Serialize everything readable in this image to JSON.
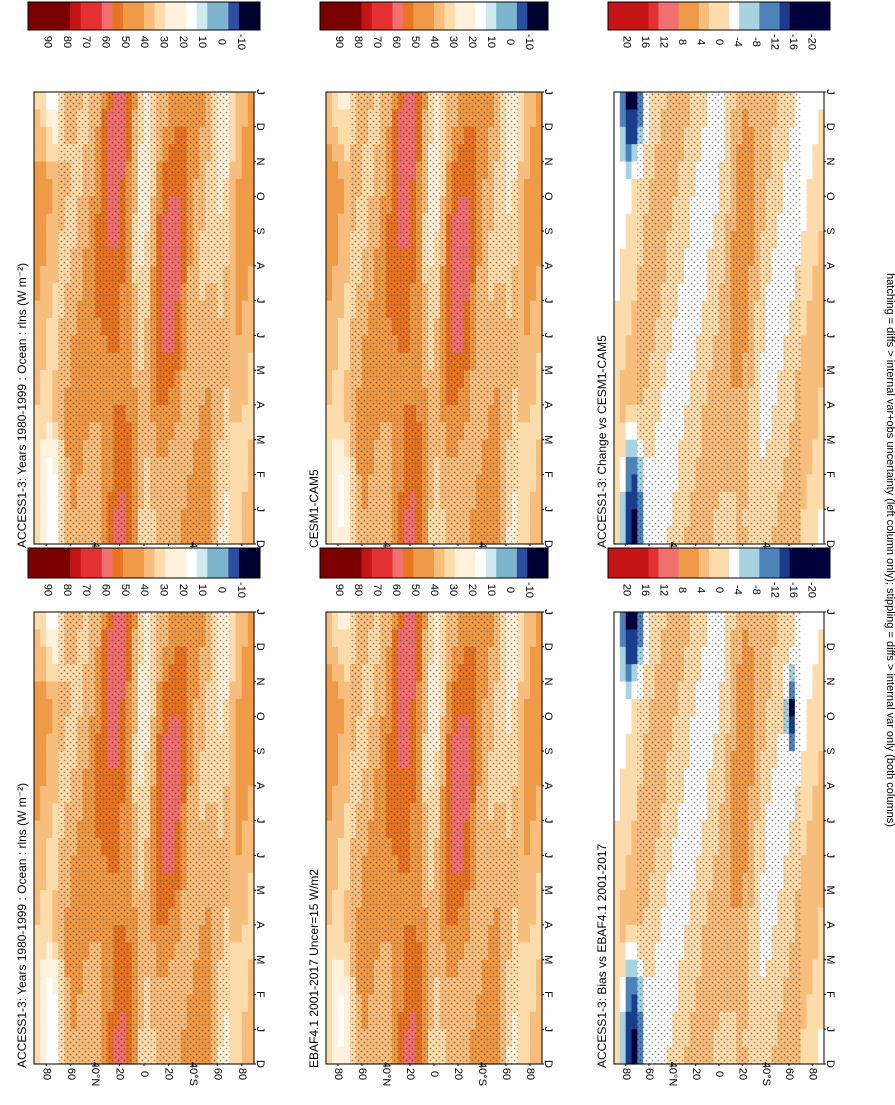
{
  "figure": {
    "footnote": "hatching = diffs > internal var+obs uncertainty (left column only); stippling = diffs > internal var only (both columns)"
  },
  "axes_text": {
    "months": [
      "D",
      "J",
      "F",
      "M",
      "A",
      "M",
      "J",
      "J",
      "A",
      "S",
      "O",
      "N",
      "D",
      "J"
    ],
    "lat_ticks": [
      "80",
      "60",
      "40°N",
      "20",
      "0",
      "20",
      "40°S",
      "60",
      "80"
    ]
  },
  "colorbars": {
    "abs": [
      "90",
      "80",
      "70",
      "60",
      "50",
      "40",
      "30",
      "20",
      "10",
      "0",
      "-10"
    ],
    "diff": [
      "20",
      "16",
      "12",
      "8",
      "4",
      "0",
      "-4",
      "-8",
      "-12",
      "-16",
      "-20"
    ],
    "abs_colors": [
      "#000030",
      "#0a1e60",
      "#2b4ea0",
      "#4e83b9",
      "#7fb4cf",
      "#a6d3df",
      "#cdeaf0",
      "#e8f6f7",
      "#ffffff",
      "#fff1dc",
      "#fddcac",
      "#f6bd7d",
      "#ef9a47",
      "#e77522",
      "#d96012",
      "#f07070",
      "#f55050",
      "#e33030",
      "#c51416",
      "#a50a14",
      "#7b0000",
      "#0000c8",
      "#0000ee",
      "#0000ff"
    ],
    "diff_colors": [
      "#000030",
      "#0a1e60",
      "#2b4ea0",
      "#4e83b9",
      "#7fb4cf",
      "#a6d3df",
      "#cdeaf0",
      "#e8f6f7",
      "#ffffff",
      "#fff1dc",
      "#fddcac",
      "#f6bd7d",
      "#ef9a47",
      "#e77522",
      "#d96012",
      "#f07070",
      "#f55050",
      "#e33030",
      "#c51416",
      "#a50a14",
      "#7b0000",
      "#0000c8",
      "#0000ee",
      "#0000ff"
    ]
  },
  "chart_data": [
    {
      "type": "heatmap",
      "title": "ACCESS1-3: Years 1980-1999 : Ocean : rlns (W m⁻²)",
      "scale": "abs",
      "xlabel": "",
      "ylabel": "",
      "x": [
        "D",
        "J",
        "F",
        "M",
        "A",
        "M",
        "J",
        "J",
        "A",
        "S",
        "O",
        "N",
        "D",
        "J"
      ],
      "y_ticks": [
        "80",
        "60",
        "40°N",
        "20",
        "0",
        "20",
        "40°S",
        "60",
        "80"
      ],
      "zlim": [
        -10,
        90
      ],
      "hatching": true
    },
    {
      "type": "heatmap",
      "title": "ACCESS1-3: Years 1980-1999 : Ocean : rlns (W m⁻²)",
      "scale": "abs",
      "xlabel": "",
      "ylabel": "",
      "x": [
        "D",
        "J",
        "F",
        "M",
        "A",
        "M",
        "J",
        "J",
        "A",
        "S",
        "O",
        "N",
        "D",
        "J"
      ],
      "y_ticks": [
        "80",
        "60",
        "40°N",
        "20",
        "0",
        "20",
        "40°S",
        "60",
        "80"
      ],
      "zlim": [
        -10,
        90
      ],
      "hatching": false
    },
    {
      "type": "heatmap",
      "title": "EBAF4.1 2001-2017 Uncer=15 W/m2",
      "scale": "abs",
      "xlabel": "",
      "ylabel": "",
      "x": [
        "D",
        "J",
        "F",
        "M",
        "A",
        "M",
        "J",
        "J",
        "A",
        "S",
        "O",
        "N",
        "D",
        "J"
      ],
      "y_ticks": [
        "80",
        "60",
        "40°N",
        "20",
        "0",
        "20",
        "40°S",
        "60",
        "80"
      ],
      "zlim": [
        -10,
        90
      ],
      "hatching": true
    },
    {
      "type": "heatmap",
      "title": "CESM1-CAM5",
      "scale": "abs",
      "xlabel": "",
      "ylabel": "",
      "x": [
        "D",
        "J",
        "F",
        "M",
        "A",
        "M",
        "J",
        "J",
        "A",
        "S",
        "O",
        "N",
        "D",
        "J"
      ],
      "y_ticks": [
        "80",
        "60",
        "40°N",
        "20",
        "0",
        "20",
        "40°S",
        "60",
        "80"
      ],
      "zlim": [
        -10,
        90
      ],
      "hatching": false
    },
    {
      "type": "heatmap",
      "title": "ACCESS1-3: Bias vs EBAF4.1 2001-2017",
      "scale": "diff",
      "xlabel": "",
      "ylabel": "",
      "x": [
        "D",
        "J",
        "F",
        "M",
        "A",
        "M",
        "J",
        "J",
        "A",
        "S",
        "O",
        "N",
        "D",
        "J"
      ],
      "y_ticks": [
        "80",
        "60",
        "40°N",
        "20",
        "0",
        "20",
        "40°S",
        "60",
        "80"
      ],
      "zlim": [
        -20,
        20
      ],
      "hatching": true
    },
    {
      "type": "heatmap",
      "title": "ACCESS1-3: Change vs CESM1-CAM5",
      "scale": "diff",
      "xlabel": "",
      "ylabel": "",
      "x": [
        "D",
        "J",
        "F",
        "M",
        "A",
        "M",
        "J",
        "J",
        "A",
        "S",
        "O",
        "N",
        "D",
        "J"
      ],
      "y_ticks": [
        "80",
        "60",
        "40°N",
        "20",
        "0",
        "20",
        "40°S",
        "60",
        "80"
      ],
      "zlim": [
        -20,
        20
      ],
      "hatching": false
    }
  ]
}
